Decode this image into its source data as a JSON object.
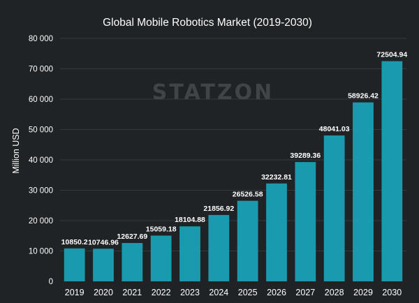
{
  "colors": {
    "background": "#1f2326",
    "bar": "#1a9aad",
    "gridline": "#34393d",
    "text": "#ffffff",
    "watermark": "#3f4448"
  },
  "watermark": "STATZON",
  "chart_data": {
    "type": "bar",
    "title": "Global Mobile Robotics Market (2019-2030)",
    "xlabel": "",
    "ylabel": "Million USD",
    "ylim": [
      0,
      80000
    ],
    "yticks": [
      0,
      10000,
      20000,
      30000,
      40000,
      50000,
      60000,
      70000,
      80000
    ],
    "ytick_labels": [
      "0",
      "10 000",
      "20 000",
      "30 000",
      "40 000",
      "50 000",
      "60 000",
      "70 000",
      "80 000"
    ],
    "grid": true,
    "categories": [
      "2019",
      "2020",
      "2021",
      "2022",
      "2023",
      "2024",
      "2025",
      "2026",
      "2027",
      "2028",
      "2029",
      "2030"
    ],
    "values": [
      10850.2,
      10746.96,
      12627.69,
      15059.18,
      18104.88,
      21856.92,
      26526.58,
      32232.81,
      39289.36,
      48041.03,
      58926.42,
      72504.94
    ],
    "value_labels": [
      "10850.2",
      "10746.96",
      "12627.69",
      "15059.18",
      "18104.88",
      "21856.92",
      "26526.58",
      "32232.81",
      "39289.36",
      "48041.03",
      "58926.42",
      "72504.94"
    ]
  }
}
